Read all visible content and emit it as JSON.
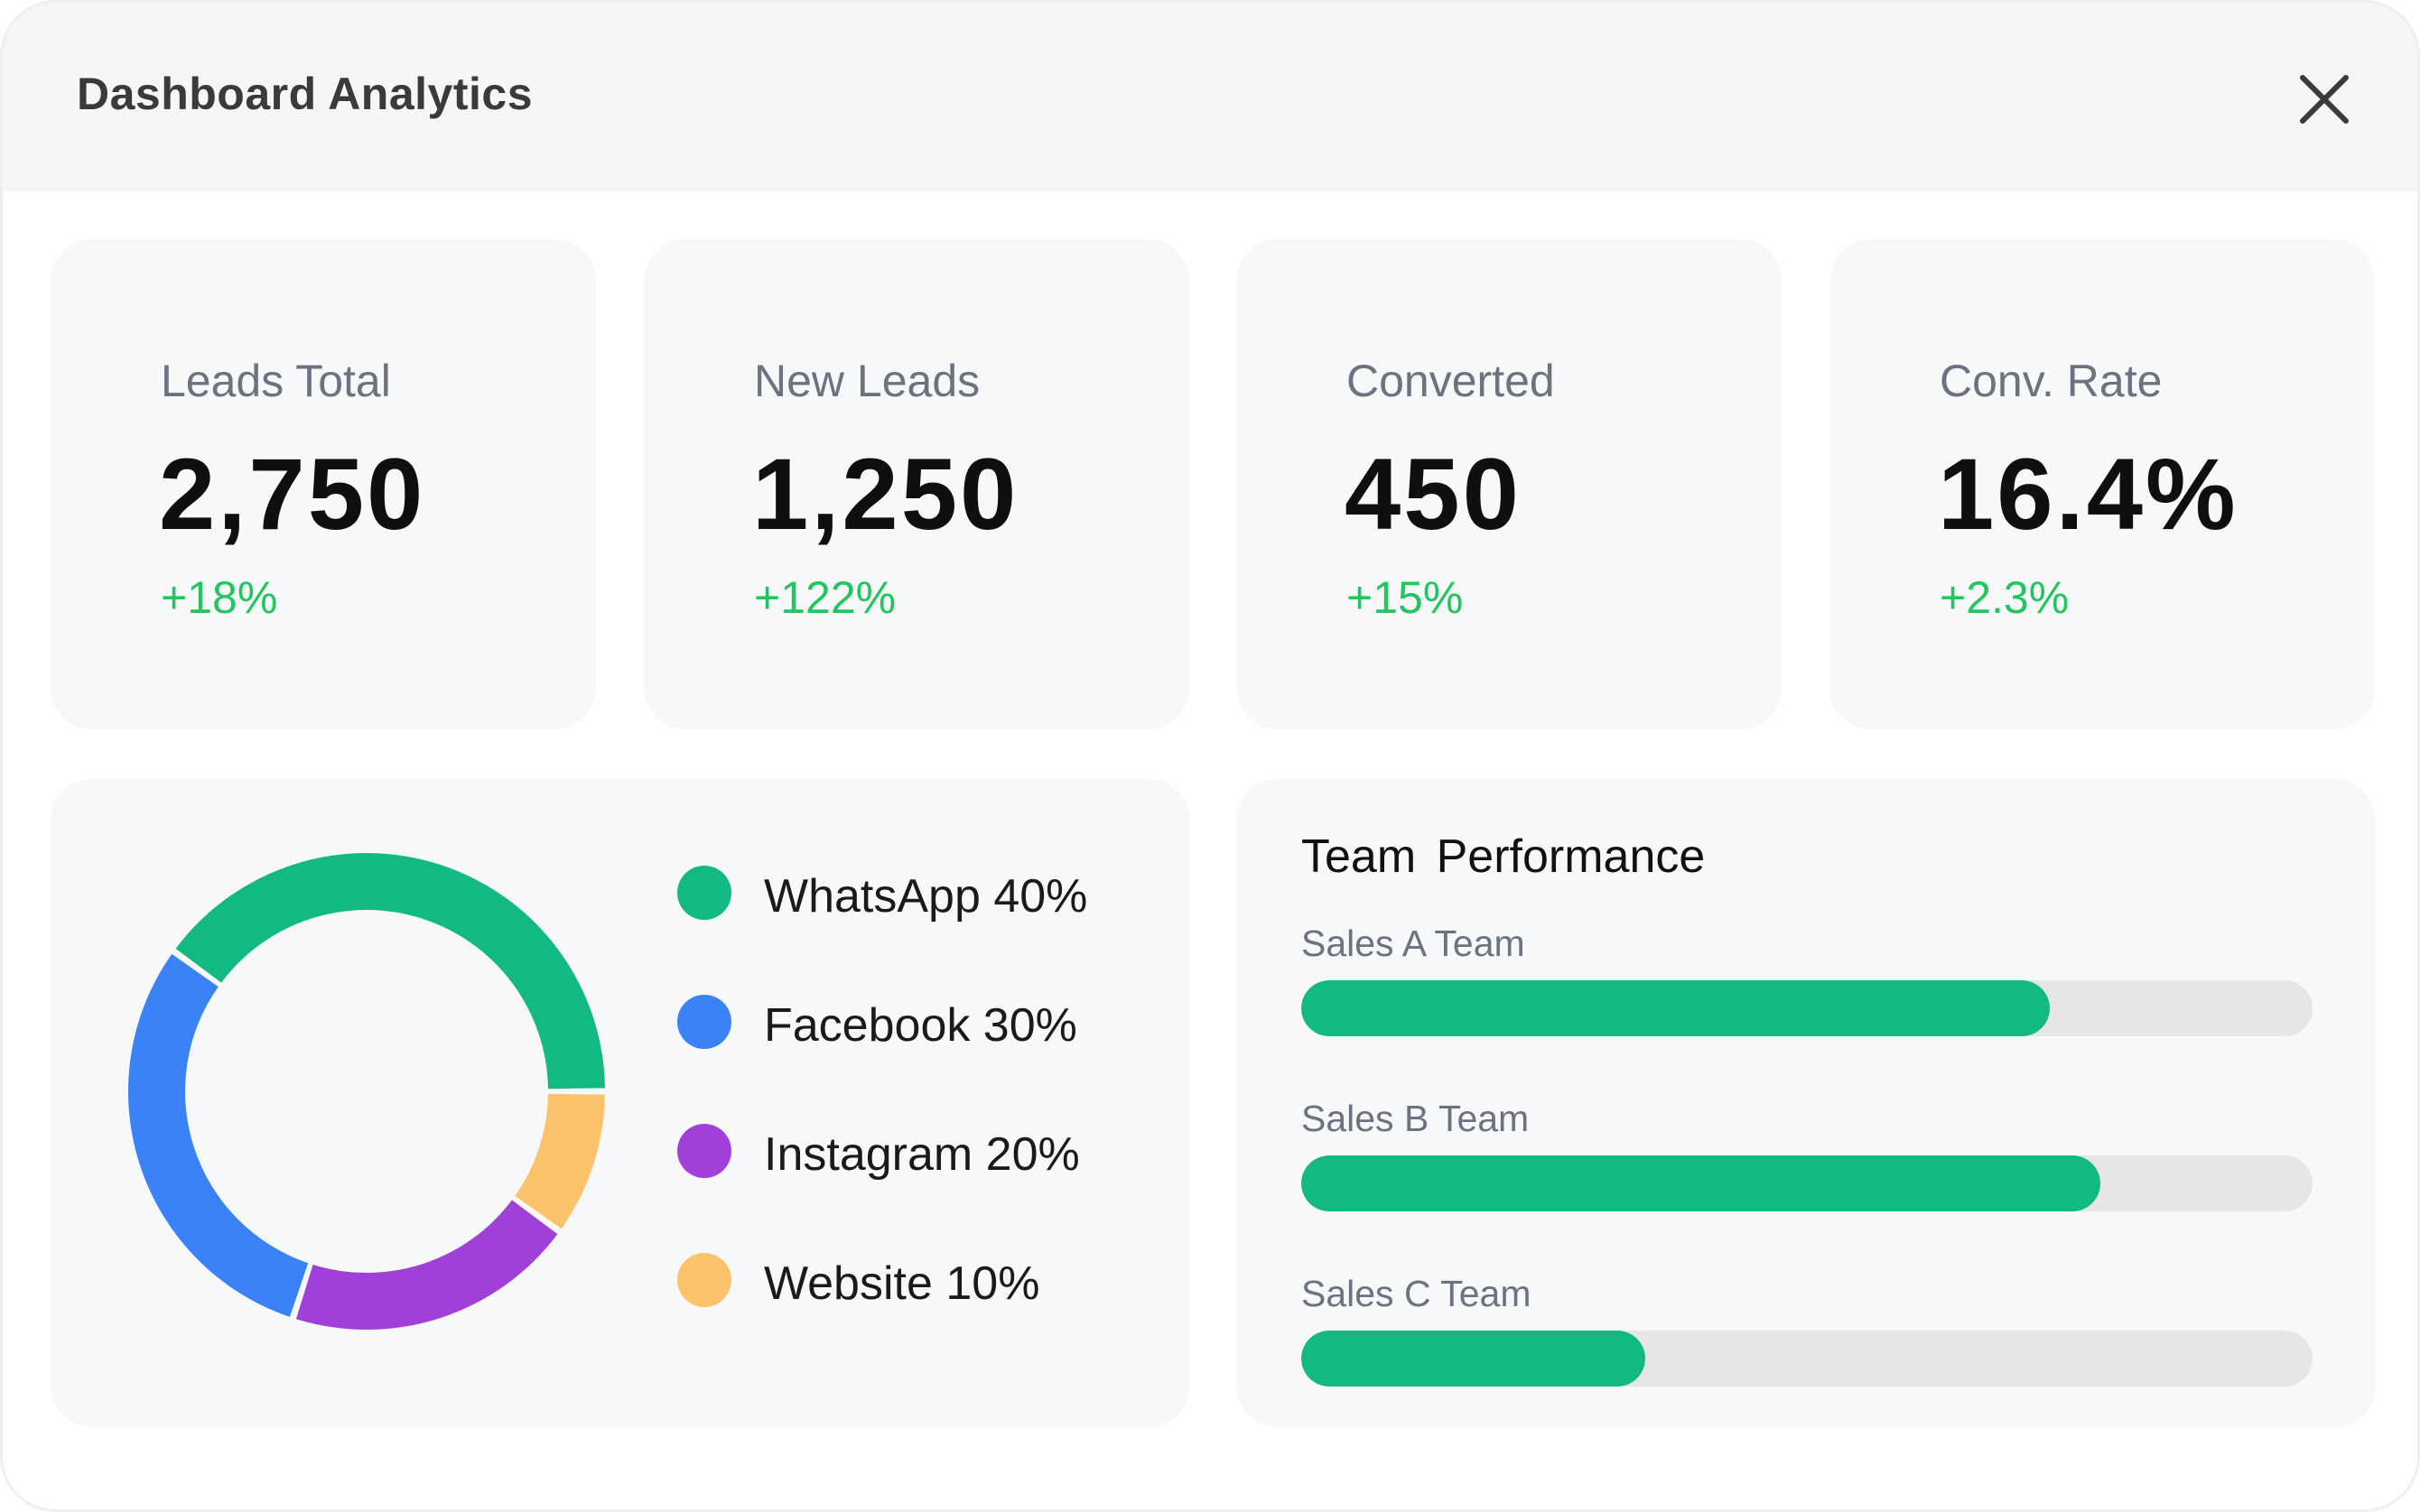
{
  "window": {
    "title": "Dashboard Analytics",
    "close_icon": "close-icon"
  },
  "stats": [
    {
      "label": "Leads Total",
      "value": "2,750",
      "change": "+18%"
    },
    {
      "label": "New Leads",
      "value": "1,250",
      "change": "+122%"
    },
    {
      "label": "Converted",
      "value": "450",
      "change": "+15%"
    },
    {
      "label": "Conv. Rate",
      "value": "16.4%",
      "change": "+2.3%"
    }
  ],
  "colors": {
    "positive_change": "#22c55e",
    "whatsapp": "#12b981",
    "facebook": "#3b82f6",
    "instagram": "#a040d8",
    "website": "#fdc36a",
    "bar_fill": "#12b981",
    "bar_track": "#e6e6e6"
  },
  "chart_data": [
    {
      "type": "pie",
      "categories": [
        "WhatsApp",
        "Facebook",
        "Instagram",
        "Website"
      ],
      "values": [
        40,
        30,
        20,
        10
      ],
      "legend": [
        "WhatsApp 40%",
        "Facebook 30%",
        "Instagram 20%",
        "Website 10%"
      ],
      "colors": [
        "#12b981",
        "#3b82f6",
        "#a040d8",
        "#fdc36a"
      ],
      "legend_position": "right"
    },
    {
      "type": "bar",
      "title": "Team  Performance",
      "categories": [
        "Sales A Team",
        "Sales B Team",
        "Sales C Team"
      ],
      "values": [
        0.74,
        0.79,
        0.34
      ],
      "value_unit": "fraction of track filled"
    }
  ]
}
